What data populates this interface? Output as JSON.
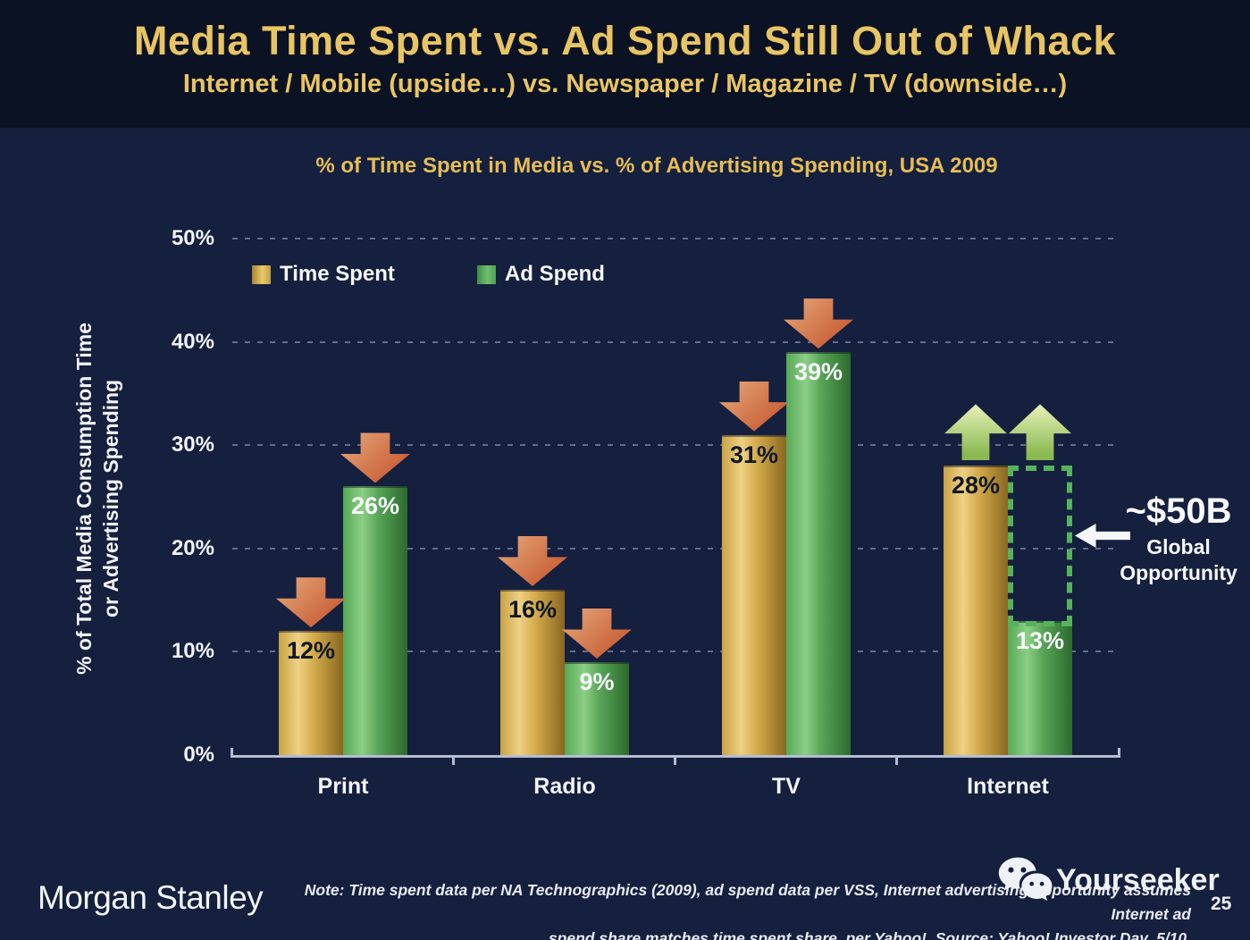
{
  "header": {
    "title": "Media Time Spent vs. Ad Spend Still Out of Whack",
    "subtitle": "Internet / Mobile (upside…) vs. Newspaper / Magazine / TV (downside…)"
  },
  "chart_data": {
    "type": "bar",
    "title": "% of Time Spent in Media vs. % of Advertising Spending, USA 2009",
    "categories": [
      "Print",
      "Radio",
      "TV",
      "Internet"
    ],
    "series": [
      {
        "name": "Time Spent",
        "color": "gold",
        "values": [
          12,
          16,
          31,
          28
        ],
        "value_labels": [
          "12%",
          "16%",
          "31%",
          "28%"
        ]
      },
      {
        "name": "Ad Spend",
        "color": "green",
        "values": [
          26,
          9,
          39,
          13
        ],
        "value_labels": [
          "26%",
          "9%",
          "39%",
          "13%"
        ]
      }
    ],
    "ylabel_line1": "% of Total Media Consumption Time",
    "ylabel_line2": "or Advertising Spending",
    "ylim": [
      0,
      50
    ],
    "ytick_step": 10,
    "ytick_labels": [
      "0%",
      "10%",
      "20%",
      "30%",
      "40%",
      "50%"
    ],
    "grid": "dotted-horizontal",
    "legend_position": "top-left-inside",
    "trend_arrows": [
      [
        "down",
        "down"
      ],
      [
        "down",
        "down"
      ],
      [
        "down",
        "down"
      ],
      [
        "up",
        "up"
      ]
    ],
    "gap_box": {
      "category": "Internet",
      "from_series": 0,
      "to_series": 1
    },
    "annotation": {
      "value": "~$50B",
      "label_line1": "Global",
      "label_line2": "Opportunity",
      "applies_to": "Internet"
    },
    "colors": {
      "time_spent_bar": "#d3aa4b",
      "ad_spend_bar": "#57a457",
      "down_arrow": "#c85c35",
      "up_arrow": "#8ab951",
      "gap_box_border": "#54b35c",
      "title_gold": "#e5bd54",
      "background": "#151f3e"
    }
  },
  "footer": {
    "brand": "Morgan Stanley",
    "note_line1": "Note: Time spent data per NA Technographics (2009), ad spend data per VSS, Internet advertising opportunity assumes Internet ad",
    "note_line2": "spend share matches time spent share, per Yahoo!. Source: Yahoo! Investor Day, 5/10.",
    "watermark": "Yourseeker",
    "page_number": "25"
  }
}
